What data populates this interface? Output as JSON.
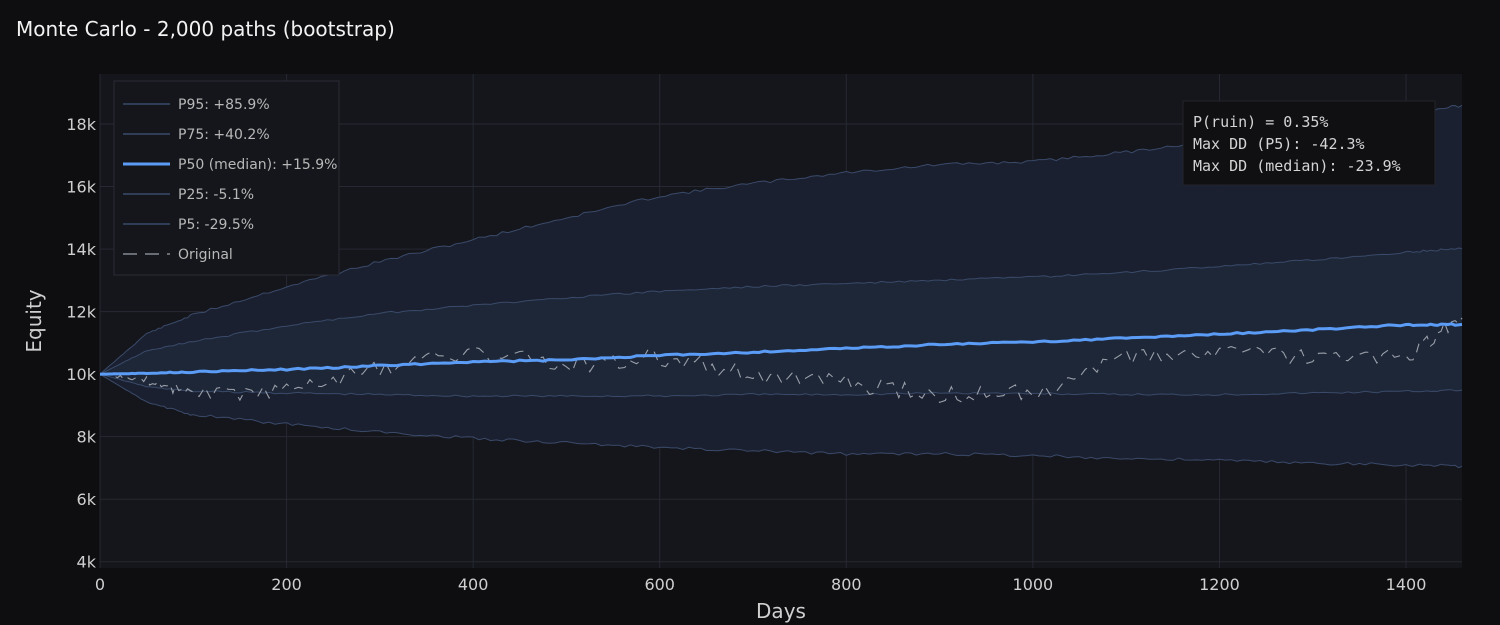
{
  "colors": {
    "background": "#0e0e11",
    "plot_background": "#15161b",
    "grid": "#262833",
    "band_outer": "#1a2130",
    "band_inner": "#1f2839",
    "percentile_line": "#3a4a6a",
    "median": "#5b9cf6",
    "original": "#9aa0aa",
    "text": "#cfcfcf",
    "title": "#f2f2f2"
  },
  "chart_data": {
    "type": "line",
    "title": "Monte Carlo - 2,000 paths (bootstrap)",
    "xlabel": "Days",
    "ylabel": "Equity",
    "xlim": [
      0,
      1460
    ],
    "ylim": [
      3800,
      19600
    ],
    "x_ticks": [
      0,
      200,
      400,
      600,
      800,
      1000,
      1200,
      1400
    ],
    "x_tick_labels": [
      "0",
      "200",
      "400",
      "600",
      "800",
      "1000",
      "1200",
      "1400"
    ],
    "y_ticks": [
      4000,
      6000,
      8000,
      10000,
      12000,
      14000,
      16000,
      18000
    ],
    "y_tick_labels": [
      "4k",
      "6k",
      "8k",
      "10k",
      "12k",
      "14k",
      "16k",
      "18k"
    ],
    "grid": true,
    "legend_position": "top-left",
    "x": [
      0,
      50,
      100,
      200,
      300,
      400,
      500,
      600,
      700,
      800,
      900,
      1000,
      1100,
      1200,
      1300,
      1400,
      1460
    ],
    "series": [
      {
        "name": "P95: +85.9%",
        "role": "p95",
        "values": [
          10000,
          11300,
          11900,
          12800,
          13600,
          14300,
          15000,
          15700,
          16100,
          16450,
          16700,
          16800,
          17100,
          17500,
          17900,
          18300,
          18600
        ]
      },
      {
        "name": "P75: +40.2%",
        "role": "p75",
        "values": [
          10000,
          10750,
          11050,
          11550,
          11950,
          12200,
          12450,
          12650,
          12800,
          12900,
          13000,
          13100,
          13250,
          13450,
          13650,
          13900,
          14020
        ]
      },
      {
        "name": "P50 (median): +15.9%",
        "role": "p50",
        "values": [
          10000,
          10030,
          10070,
          10150,
          10270,
          10400,
          10450,
          10600,
          10700,
          10820,
          10950,
          11030,
          11150,
          11280,
          11420,
          11580,
          11590
        ]
      },
      {
        "name": "P25: -5.1%",
        "role": "p25",
        "values": [
          10000,
          9600,
          9450,
          9400,
          9350,
          9300,
          9300,
          9300,
          9350,
          9350,
          9400,
          9380,
          9350,
          9350,
          9400,
          9450,
          9490
        ]
      },
      {
        "name": "P5: -29.5%",
        "role": "p5",
        "values": [
          10000,
          9100,
          8700,
          8400,
          8150,
          7950,
          7800,
          7650,
          7550,
          7450,
          7450,
          7400,
          7300,
          7250,
          7150,
          7100,
          7050
        ]
      },
      {
        "name": "Original",
        "role": "original",
        "values": [
          10000,
          9800,
          9400,
          9500,
          10200,
          10700,
          10300,
          10550,
          10000,
          9700,
          9300,
          9400,
          10500,
          10700,
          10500,
          10500,
          11800
        ]
      }
    ],
    "annotations": [
      "P(ruin) = 0.35%",
      "Max DD (P5): -42.3%",
      "Max DD (median): -23.9%"
    ]
  }
}
